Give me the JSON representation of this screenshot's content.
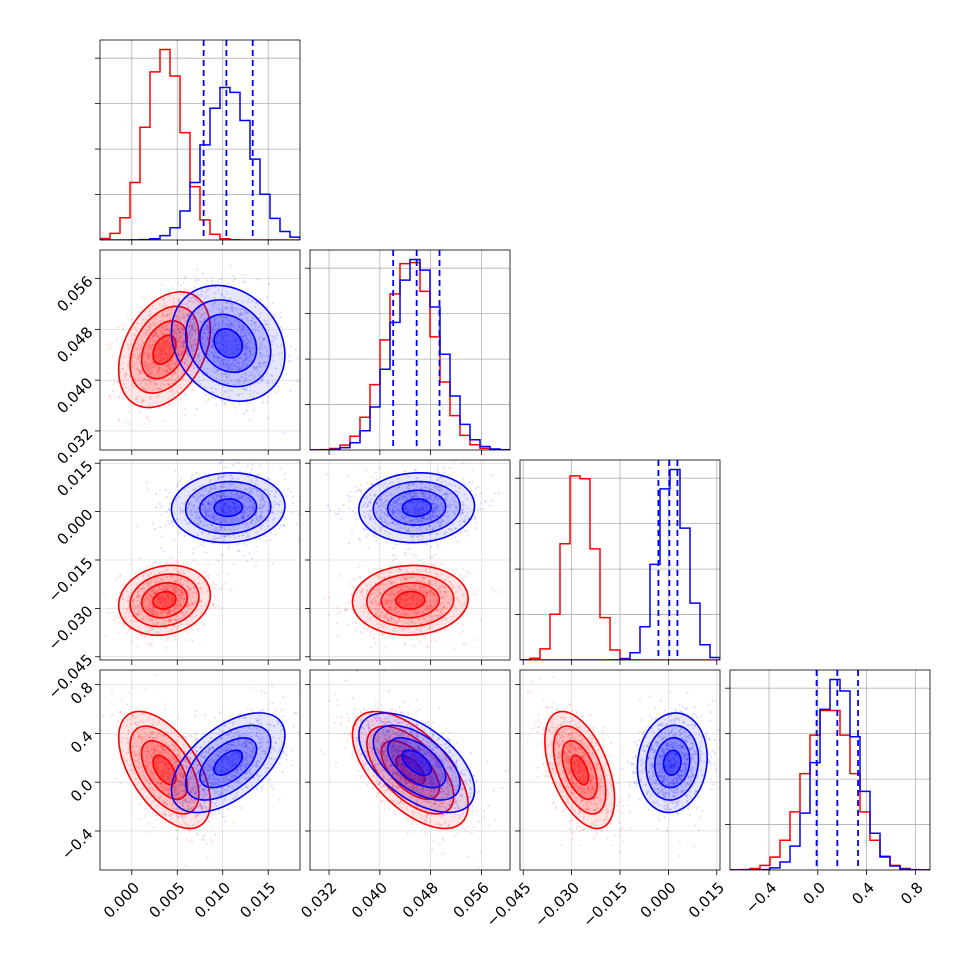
{
  "chart_data": {
    "type": "corner",
    "colors": {
      "red": "#ff0000",
      "blue": "#0000ff",
      "grid": "#b0b0b0"
    },
    "parameters": [
      {
        "range": [
          -0.0035,
          0.0185
        ],
        "ticks": [
          "0.000",
          "0.005",
          "0.010",
          "0.015"
        ],
        "tick_values": [
          0.0,
          0.005,
          0.01,
          0.015
        ]
      },
      {
        "range": [
          0.029,
          0.0605
        ],
        "ticks": [
          "0.032",
          "0.040",
          "0.048",
          "0.056"
        ],
        "tick_values": [
          0.032,
          0.04,
          0.048,
          0.056
        ]
      },
      {
        "range": [
          -0.046,
          0.016
        ],
        "ticks": [
          "−0.045",
          "−0.030",
          "−0.015",
          "0.000",
          "0.015"
        ],
        "tick_values": [
          -0.045,
          -0.03,
          -0.015,
          0.0,
          0.015
        ]
      },
      {
        "range": [
          -0.72,
          0.92
        ],
        "ticks": [
          "−0.4",
          "0.0",
          "0.4",
          "0.8"
        ],
        "tick_values": [
          -0.4,
          0.0,
          0.4,
          0.8
        ]
      }
    ],
    "series": [
      {
        "color": "red",
        "means": [
          0.0036,
          0.0448,
          -0.0275,
          0.1
        ],
        "sds": [
          0.0021,
          0.0038,
          0.0045,
          0.2
        ],
        "correlations": {
          "1,0": 0.35,
          "2,0": 0.15,
          "2,1": 0.05,
          "3,0": -0.55,
          "3,1": -0.6,
          "3,2": -0.5
        }
      },
      {
        "color": "blue",
        "means": [
          0.0106,
          0.0458,
          0.0012,
          0.16
        ],
        "sds": [
          0.0026,
          0.0038,
          0.0045,
          0.17
        ],
        "correlations": {
          "1,0": -0.2,
          "2,0": 0.05,
          "2,1": 0.05,
          "3,0": 0.55,
          "3,1": -0.55,
          "3,2": 0.1
        }
      }
    ],
    "quantile_lines": {
      "color": "blue",
      "values": [
        [
          0.0079,
          0.0104,
          0.0133
        ],
        [
          0.0421,
          0.0458,
          0.0494
        ],
        [
          -0.0031,
          0.0003,
          0.0028
        ],
        [
          -0.01,
          0.16,
          0.33
        ]
      ]
    },
    "grid": true
  }
}
